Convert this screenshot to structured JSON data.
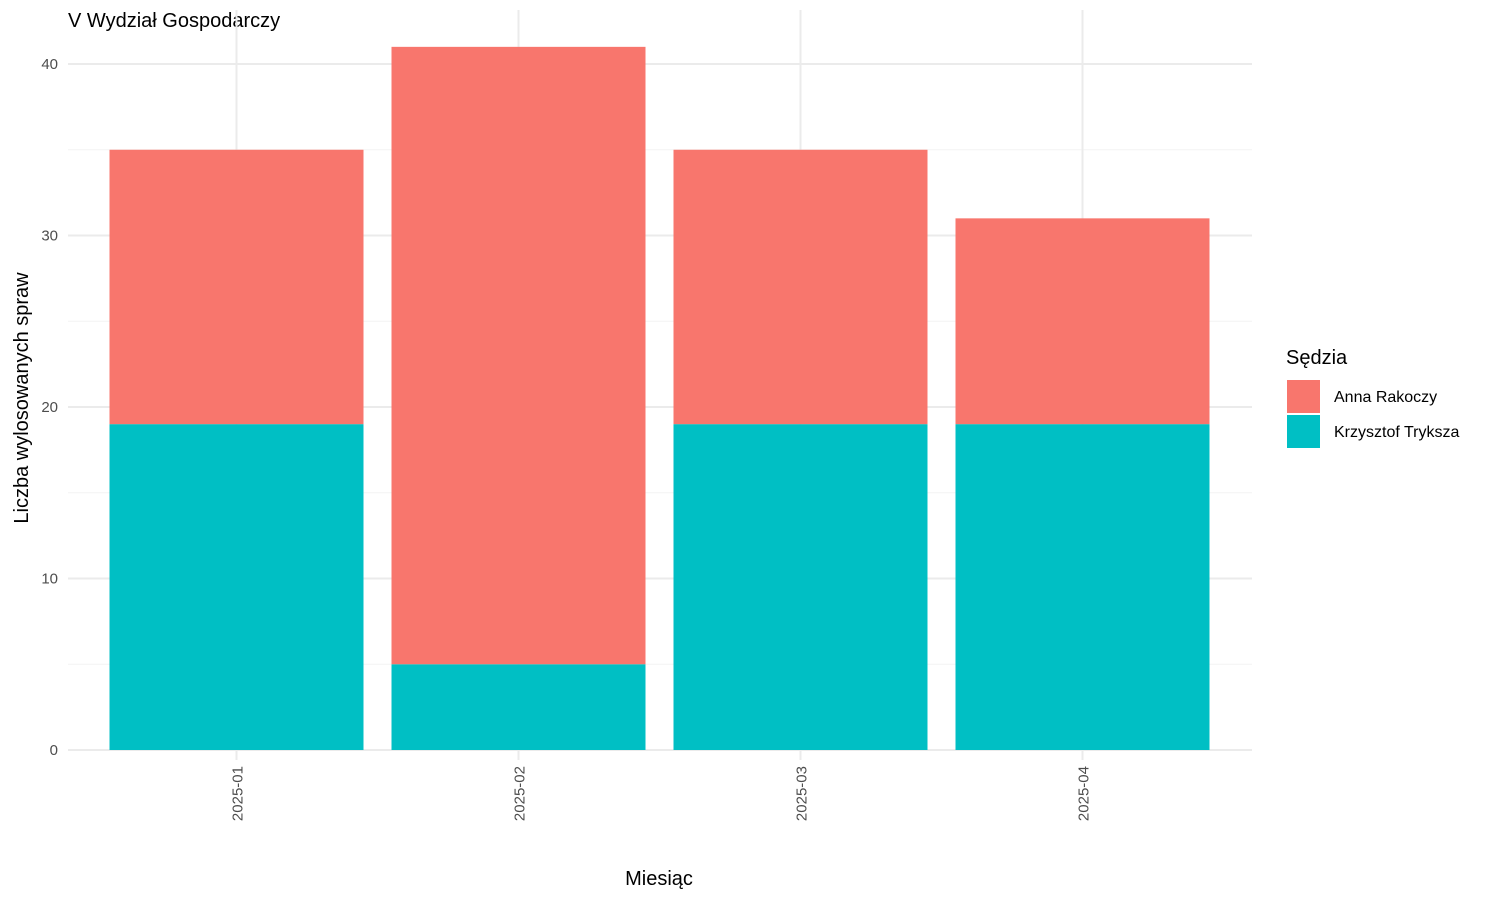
{
  "chart_data": {
    "type": "bar",
    "stacked": true,
    "title": "V Wydział Gospodarczy",
    "xlabel": "Miesiąc",
    "ylabel": "Liczba wylosowanych spraw",
    "categories": [
      "2025-01",
      "2025-02",
      "2025-03",
      "2025-04"
    ],
    "ylim": [
      0,
      42
    ],
    "yticks": [
      0,
      10,
      20,
      30,
      40
    ],
    "grid": true,
    "legend": {
      "title": "Sędzia",
      "placement": "right"
    },
    "series": [
      {
        "name": "Krzysztof Tryksza",
        "color": "#00BFC4",
        "values": [
          19,
          5,
          19,
          19
        ]
      },
      {
        "name": "Anna Rakoczy",
        "color": "#F8766D",
        "values": [
          16,
          36,
          16,
          12
        ]
      }
    ]
  }
}
